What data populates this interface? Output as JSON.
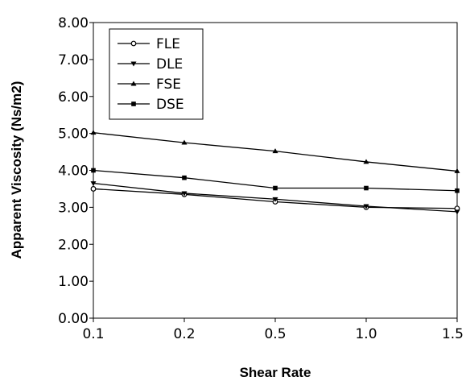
{
  "chart_data": {
    "type": "line",
    "title": "",
    "xlabel": "Shear Rate",
    "ylabel": "Apparent Viscosity (Ns/m2)",
    "x": [
      "0.1",
      "0.2",
      "0.5",
      "1.0",
      "1.5"
    ],
    "ylim": [
      0,
      8
    ],
    "yticks": [
      "0.00",
      "1.00",
      "2.00",
      "3.00",
      "4.00",
      "5.00",
      "6.00",
      "7.00",
      "8.00"
    ],
    "legend_position": "top-left",
    "grid": false,
    "series": [
      {
        "name": "FLE",
        "marker": "circle",
        "values": [
          3.5,
          3.35,
          3.15,
          3.0,
          2.97
        ]
      },
      {
        "name": "DLE",
        "marker": "triangle-down",
        "values": [
          3.65,
          3.38,
          3.22,
          3.03,
          2.88
        ]
      },
      {
        "name": "FSE",
        "marker": "triangle-up",
        "values": [
          5.02,
          4.75,
          4.52,
          4.23,
          3.98
        ]
      },
      {
        "name": "DSE",
        "marker": "square",
        "values": [
          4.0,
          3.8,
          3.52,
          3.52,
          3.45
        ]
      }
    ]
  }
}
